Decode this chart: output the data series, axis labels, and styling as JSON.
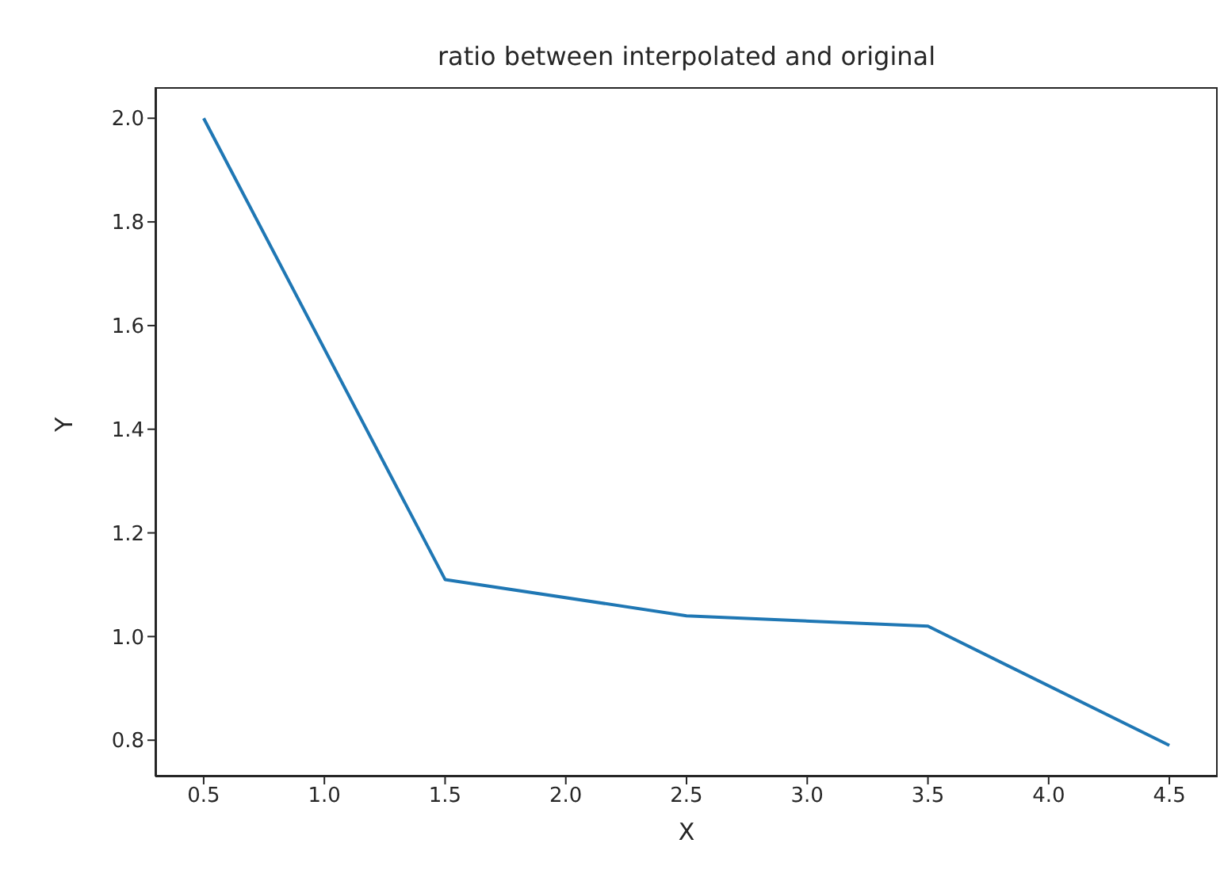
{
  "chart_data": {
    "type": "line",
    "title": "ratio between interpolated and original",
    "xlabel": "X",
    "ylabel": "Y",
    "x": [
      0.5,
      1.5,
      2.5,
      3.5,
      4.5
    ],
    "series": [
      {
        "color": "#1f77b4",
        "values": [
          2.0,
          1.11,
          1.04,
          1.02,
          0.79
        ]
      }
    ],
    "xlim": [
      0.3,
      4.7
    ],
    "xticks": [
      0.5,
      {
        "value": 1,
        "label": "1.0"
      },
      1.5,
      {
        "value": 2,
        "label": "2.0"
      },
      2.5,
      {
        "value": 3,
        "label": "3.0"
      },
      3.5,
      {
        "value": 4,
        "label": "4.0"
      },
      4.5
    ],
    "ylim": [
      0.73,
      2.06
    ],
    "yticks": [
      0.8,
      {
        "value": 1,
        "label": "1.0"
      },
      1.2,
      1.4,
      1.6,
      1.8,
      {
        "value": 2,
        "label": "2.0"
      }
    ]
  }
}
